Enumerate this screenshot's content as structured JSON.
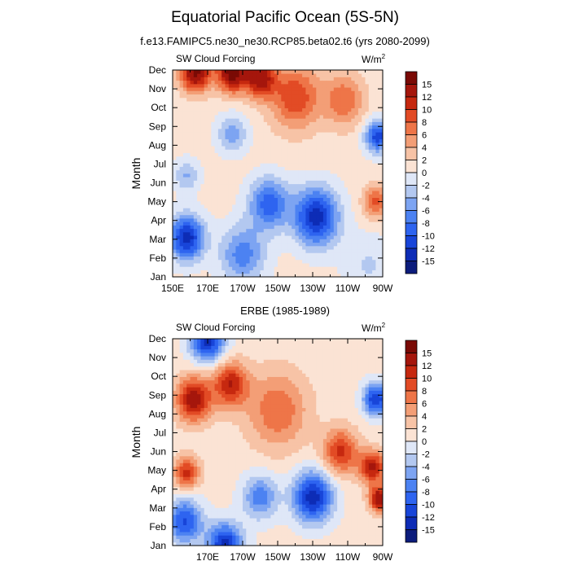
{
  "title": "Equatorial Pacific Ocean (5S-5N)",
  "chart_data": [
    {
      "type": "heatmap",
      "title": "f.e13.FAMIPC5.ne30_ne30.RCP85.beta02.t6 (yrs 2080-2099)",
      "left_label": "SW Cloud Forcing",
      "units": "W/m",
      "units_sup": "2",
      "ylabel": "Month",
      "xlabel": "",
      "xlim": [
        150,
        270
      ],
      "x_ticks": [
        {
          "lon": 150,
          "label": "150E"
        },
        {
          "lon": 170,
          "label": "170E"
        },
        {
          "lon": 190,
          "label": "170W"
        },
        {
          "lon": 210,
          "label": "150W"
        },
        {
          "lon": 230,
          "label": "130W"
        },
        {
          "lon": 250,
          "label": "110W"
        },
        {
          "lon": 270,
          "label": "90W"
        }
      ],
      "y_ticks": [
        "Jan",
        "Feb",
        "Mar",
        "Apr",
        "May",
        "Jun",
        "Jul",
        "Aug",
        "Sep",
        "Oct",
        "Nov",
        "Dec"
      ],
      "grid": "off",
      "colorbar_position": "right",
      "levels": [
        "15",
        "12",
        "10",
        "8",
        "6",
        "4",
        "2",
        "0",
        "-2",
        "-4",
        "-6",
        "-8",
        "-10",
        "-12",
        "-15"
      ],
      "colors": [
        "#0c1c7c",
        "#0d2cb6",
        "#1845d9",
        "#2e64f0",
        "#4c82f2",
        "#7da4f2",
        "#b3c8f0",
        "#dfe7f7",
        "#fbe3d4",
        "#f7c3a6",
        "#f39e76",
        "#ee7548",
        "#e24b25",
        "#c6280f",
        "#a5160c",
        "#7a0a05"
      ],
      "features": [
        {
          "lon": 163,
          "mon": 10.9,
          "v": 15,
          "s": 6
        },
        {
          "lon": 184,
          "mon": 10.9,
          "v": 16,
          "s": 6
        },
        {
          "lon": 200,
          "mon": 10.6,
          "v": 13,
          "s": 6
        },
        {
          "lon": 220,
          "mon": 9.6,
          "v": 9,
          "s": 10
        },
        {
          "lon": 248,
          "mon": 9.4,
          "v": 7,
          "s": 8
        },
        {
          "lon": 267,
          "mon": 7.5,
          "v": -12,
          "s": 5
        },
        {
          "lon": 184,
          "mon": 7.6,
          "v": -6,
          "s": 6
        },
        {
          "lon": 232,
          "mon": 3.2,
          "v": -14,
          "s": 9
        },
        {
          "lon": 205,
          "mon": 3.9,
          "v": -10,
          "s": 8
        },
        {
          "lon": 158,
          "mon": 2.1,
          "v": -14,
          "s": 7
        },
        {
          "lon": 158,
          "mon": 5.4,
          "v": -5,
          "s": 5
        },
        {
          "lon": 266,
          "mon": 4.0,
          "v": 8,
          "s": 5
        },
        {
          "lon": 190,
          "mon": 1.2,
          "v": -8,
          "s": 9
        },
        {
          "lon": 262,
          "mon": 0.6,
          "v": -3,
          "s": 10
        }
      ]
    },
    {
      "type": "heatmap",
      "title": "ERBE (1985-1989)",
      "left_label": "SW Cloud Forcing",
      "units": "W/m",
      "units_sup": "2",
      "ylabel": "Month",
      "xlabel": "",
      "xlim": [
        150,
        270
      ],
      "x_ticks": [
        {
          "lon": 170,
          "label": "170E"
        },
        {
          "lon": 190,
          "label": "170W"
        },
        {
          "lon": 210,
          "label": "150W"
        },
        {
          "lon": 230,
          "label": "130W"
        },
        {
          "lon": 250,
          "label": "110W"
        },
        {
          "lon": 270,
          "label": "90W"
        }
      ],
      "y_ticks": [
        "Jan",
        "Feb",
        "Mar",
        "Apr",
        "May",
        "Jun",
        "Jul",
        "Aug",
        "Sep",
        "Oct",
        "Nov",
        "Dec"
      ],
      "grid": "off",
      "colorbar_position": "right",
      "levels": [
        "15",
        "12",
        "10",
        "8",
        "6",
        "4",
        "2",
        "0",
        "-2",
        "-4",
        "-6",
        "-8",
        "-10",
        "-12",
        "-15"
      ],
      "colors": [
        "#0c1c7c",
        "#0d2cb6",
        "#1845d9",
        "#2e64f0",
        "#4c82f2",
        "#7da4f2",
        "#b3c8f0",
        "#dfe7f7",
        "#fbe3d4",
        "#f7c3a6",
        "#f39e76",
        "#ee7548",
        "#e24b25",
        "#c6280f",
        "#a5160c",
        "#7a0a05"
      ],
      "features": [
        {
          "lon": 170,
          "mon": 11.0,
          "v": -14,
          "s": 7
        },
        {
          "lon": 162,
          "mon": 7.8,
          "v": 13,
          "s": 7
        },
        {
          "lon": 183,
          "mon": 8.6,
          "v": 11,
          "s": 7
        },
        {
          "lon": 210,
          "mon": 7.2,
          "v": 7,
          "s": 12
        },
        {
          "lon": 246,
          "mon": 5.0,
          "v": 10,
          "s": 7
        },
        {
          "lon": 264,
          "mon": 4.2,
          "v": 12,
          "s": 5
        },
        {
          "lon": 266,
          "mon": 7.8,
          "v": -13,
          "s": 5
        },
        {
          "lon": 230,
          "mon": 2.6,
          "v": -14,
          "s": 8
        },
        {
          "lon": 200,
          "mon": 2.6,
          "v": -8,
          "s": 7
        },
        {
          "lon": 157,
          "mon": 1.3,
          "v": -11,
          "s": 7
        },
        {
          "lon": 180,
          "mon": 0.0,
          "v": -14,
          "s": 7
        },
        {
          "lon": 158,
          "mon": 3.9,
          "v": 10,
          "s": 5
        },
        {
          "lon": 268,
          "mon": 2.5,
          "v": 14,
          "s": 4
        }
      ]
    }
  ]
}
